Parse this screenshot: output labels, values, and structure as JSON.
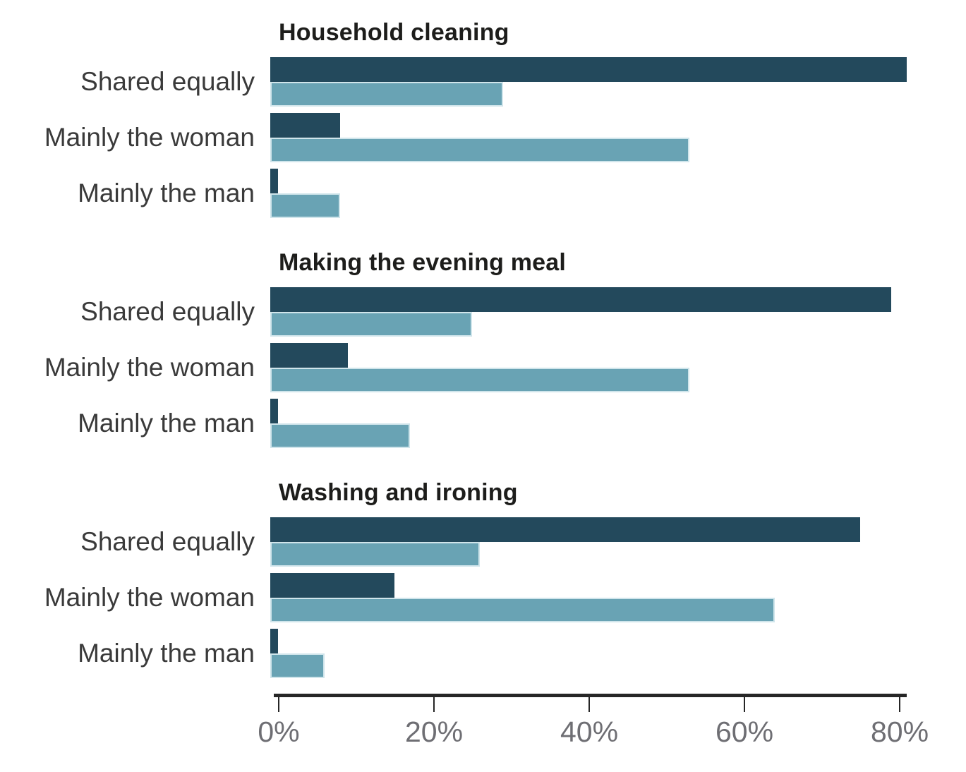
{
  "chart_data": {
    "type": "bar",
    "orientation": "horizontal",
    "unit": "%",
    "categories": [
      "Shared equally",
      "Mainly the woman",
      "Mainly the man"
    ],
    "sections": [
      {
        "title": "Household cleaning",
        "rows": [
          {
            "category": "Shared equally",
            "dark": 82,
            "light": 30
          },
          {
            "category": "Mainly the woman",
            "dark": 9,
            "light": 54
          },
          {
            "category": "Mainly the man",
            "dark": 1,
            "light": 9
          }
        ]
      },
      {
        "title": "Making the evening meal",
        "rows": [
          {
            "category": "Shared equally",
            "dark": 80,
            "light": 26
          },
          {
            "category": "Mainly the woman",
            "dark": 10,
            "light": 54
          },
          {
            "category": "Mainly the man",
            "dark": 1,
            "light": 18
          }
        ]
      },
      {
        "title": "Washing and ironing",
        "rows": [
          {
            "category": "Shared equally",
            "dark": 76,
            "light": 27
          },
          {
            "category": "Mainly the woman",
            "dark": 16,
            "light": 65
          },
          {
            "category": "Mainly the man",
            "dark": 1,
            "light": 7
          }
        ]
      }
    ],
    "x_axis": {
      "tick_labels": [
        "0%",
        "20%",
        "40%",
        "60%",
        "80%"
      ],
      "tick_values": [
        0,
        20,
        40,
        60,
        80
      ],
      "max_tick": 80,
      "grid": false
    },
    "legend_position": "none"
  },
  "colors": {
    "dark_series": "#23495C",
    "light_series": "#69A3B4",
    "axis_line": "#262626",
    "tick": "#262626",
    "tick_label": "#6e6e73",
    "title_text": "#1d1d1b",
    "category_text": "#3a3a3a",
    "background": "#ffffff"
  }
}
